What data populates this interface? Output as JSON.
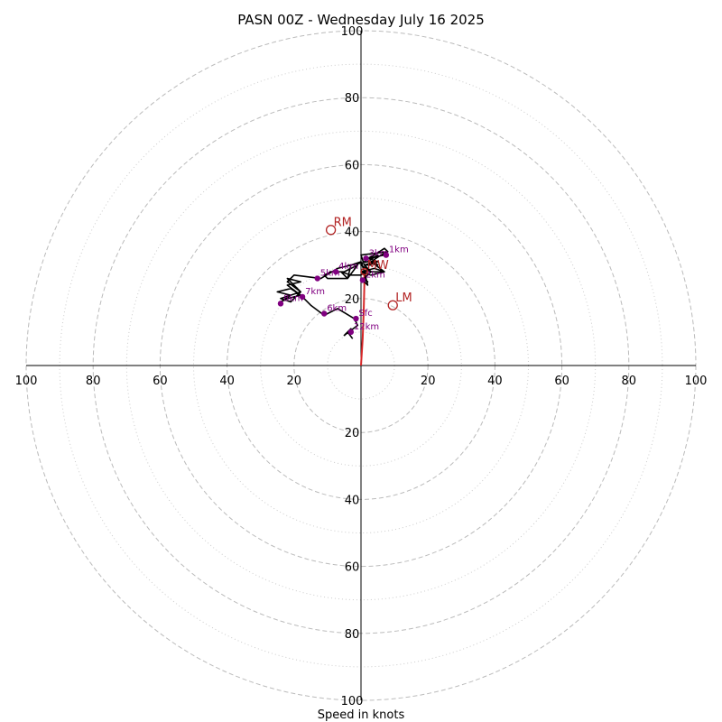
{
  "chart_data": {
    "type": "hodograph",
    "title": "PASN 00Z - Wednesday July 16 2025",
    "xlabel": "Speed in knots",
    "range": [
      -100,
      100
    ],
    "tick_labels": [
      "100",
      "80",
      "60",
      "40",
      "20",
      "20",
      "40",
      "60",
      "80",
      "100"
    ],
    "y_tick_labels": [
      "100",
      "80",
      "60",
      "40",
      "20",
      "20",
      "40",
      "60",
      "80",
      "100"
    ],
    "rings_major": [
      20,
      40,
      60,
      80,
      100
    ],
    "rings_minor": [
      10,
      30,
      50,
      70,
      90
    ],
    "grid": true,
    "colors": {
      "trace": "#000000",
      "mean_wind": "#d62728",
      "heights": "#800080",
      "motion": "#b22222",
      "grid": "#bbbbbb"
    },
    "trace": [
      [
        -2.5,
        8
      ],
      [
        -4,
        10
      ],
      [
        -3,
        11
      ],
      [
        -5,
        9
      ],
      [
        -1,
        12
      ],
      [
        -2,
        14
      ],
      [
        -7,
        17
      ],
      [
        -11,
        15
      ],
      [
        -15,
        18
      ],
      [
        -18,
        21
      ],
      [
        -22,
        20
      ],
      [
        -24,
        19
      ],
      [
        -21,
        21
      ],
      [
        -25,
        22
      ],
      [
        -21,
        23
      ],
      [
        -18,
        21
      ],
      [
        -22,
        24
      ],
      [
        -18,
        25
      ],
      [
        -22,
        26
      ],
      [
        -18,
        22
      ],
      [
        -21,
        21
      ],
      [
        -24,
        20
      ],
      [
        -21,
        19
      ],
      [
        -18,
        22
      ],
      [
        -22,
        25
      ],
      [
        -20,
        27
      ],
      [
        -12,
        26
      ],
      [
        -7,
        29
      ],
      [
        -3,
        30
      ],
      [
        -4,
        26
      ],
      [
        -10,
        26
      ],
      [
        -11,
        27
      ],
      [
        -9,
        28
      ],
      [
        -5,
        28
      ],
      [
        -1,
        30
      ],
      [
        -4,
        26
      ],
      [
        -6,
        28
      ],
      [
        -3,
        27
      ],
      [
        0,
        27
      ],
      [
        1,
        28
      ],
      [
        0,
        31
      ],
      [
        -3,
        30
      ],
      [
        2,
        31
      ],
      [
        5,
        33
      ],
      [
        3,
        30
      ],
      [
        1,
        30
      ],
      [
        3,
        28
      ],
      [
        0,
        30
      ],
      [
        2,
        32
      ],
      [
        4,
        33
      ],
      [
        7,
        35
      ],
      [
        8,
        34
      ],
      [
        6,
        33
      ],
      [
        3,
        31
      ],
      [
        2,
        30
      ],
      [
        5,
        31
      ],
      [
        2,
        32
      ],
      [
        7,
        33
      ],
      [
        8,
        34
      ],
      [
        0,
        33
      ],
      [
        1,
        30
      ],
      [
        4,
        31
      ],
      [
        3,
        32
      ],
      [
        5,
        30
      ],
      [
        3,
        31
      ],
      [
        7,
        28
      ],
      [
        3,
        27
      ],
      [
        0,
        28
      ],
      [
        4,
        29
      ],
      [
        7,
        28
      ],
      [
        3,
        28
      ],
      [
        1,
        26
      ],
      [
        2,
        25
      ],
      [
        0,
        26
      ],
      [
        2,
        24
      ],
      [
        1,
        28
      ],
      [
        7,
        28
      ]
    ],
    "height_markers": [
      {
        "label": "1km",
        "u": 7.5,
        "v": 33
      },
      {
        "label": "2km",
        "u": 0.5,
        "v": 25.5
      },
      {
        "label": "3km",
        "u": 1.5,
        "v": 32
      },
      {
        "label": "4km",
        "u": -7.5,
        "v": 28
      },
      {
        "label": "5km",
        "u": -13,
        "v": 26
      },
      {
        "label": "6km",
        "u": -11,
        "v": 15.5
      },
      {
        "label": "7km",
        "u": -17.5,
        "v": 20.5
      },
      {
        "label": "8km",
        "u": -24,
        "v": 18.5
      },
      {
        "label": "Sfc",
        "u": -1.5,
        "v": 14
      },
      {
        "label": "12km",
        "u": -3,
        "v": 10
      }
    ],
    "mean_wind": {
      "label": "MW",
      "u": 1,
      "v": 28,
      "line": [
        [
          0,
          0
        ],
        [
          0.5,
          8
        ],
        [
          0.8,
          16
        ],
        [
          1,
          24
        ],
        [
          1,
          28
        ]
      ]
    },
    "storm_motion": [
      {
        "label": "RM",
        "u": -9,
        "v": 40.5
      },
      {
        "label": "LM",
        "u": 9.5,
        "v": 18
      }
    ]
  }
}
